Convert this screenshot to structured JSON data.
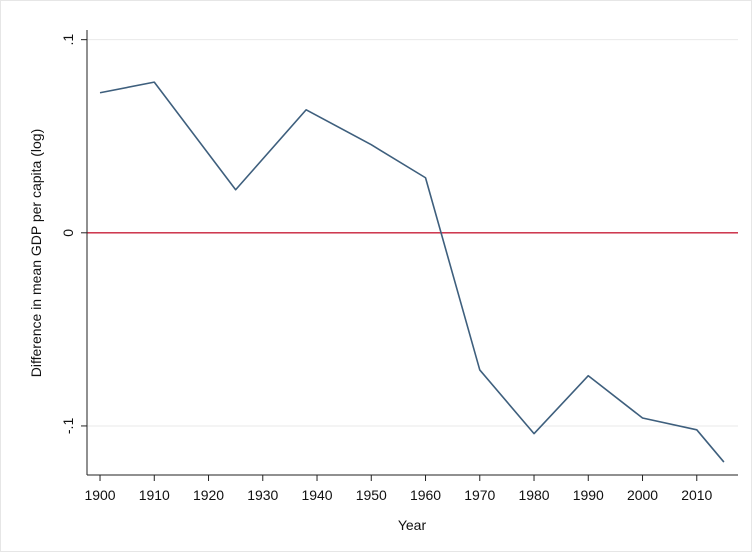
{
  "chart_data": {
    "type": "line",
    "x_label": "Year",
    "y_label": "Difference in mean GDP per capita (log)",
    "x": [
      1900,
      1910,
      1925,
      1938,
      1950,
      1960,
      1970,
      1980,
      1990,
      2000,
      2010,
      2015
    ],
    "series": [
      {
        "color": "#3e5f7d",
        "values": [
          0.0725,
          0.078,
          0.0223,
          0.0637,
          0.0456,
          0.0285,
          -0.071,
          -0.104,
          -0.074,
          -0.0959,
          -0.102,
          -0.1187
        ]
      }
    ],
    "xlim": [
      1897.6,
      2017.6
    ],
    "ylim": [
      -0.1254,
      0.105
    ],
    "xticks": [
      1900,
      1910,
      1920,
      1930,
      1940,
      1950,
      1960,
      1970,
      1980,
      1990,
      2000,
      2010
    ],
    "yticks": [
      {
        "value": -0.1,
        "label": "-.1"
      },
      0,
      {
        "value": 0.1,
        "label": ".1"
      }
    ],
    "reference_line": {
      "value": 0,
      "color": "#c8203a"
    },
    "grid": true
  }
}
